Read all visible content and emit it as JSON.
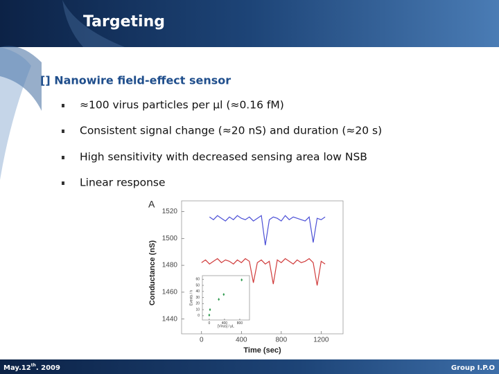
{
  "header": {
    "title": "Targeting"
  },
  "subtitle": "[] Nanowire field-effect sensor",
  "bullets": [
    "≈100 virus particles per μl (≈0.16 fM)",
    "Consistent signal change (≈20 nS) and duration (≈20 s)",
    "High sensitivity with decreased sensing area low NSB",
    "Linear response"
  ],
  "footer": {
    "date": {
      "main": "May.12",
      "sup": "th",
      "rest": ". 2009"
    },
    "group": "Group I.P.O"
  },
  "chart_data": [
    {
      "type": "line",
      "panel_label": "A",
      "xlabel": "Time (sec)",
      "ylabel": "Conductance (nS)",
      "x": [
        0,
        40,
        80,
        120,
        160,
        200,
        240,
        280,
        320,
        360,
        400,
        440,
        480,
        520,
        560,
        600,
        640,
        680,
        720,
        760,
        800,
        840,
        880,
        920,
        960,
        1000,
        1040,
        1080,
        1120,
        1160,
        1200,
        1240
      ],
      "series": [
        {
          "color": "#4b4fd6",
          "values": [
            null,
            null,
            1516,
            1514,
            1517,
            1515,
            1513,
            1516,
            1514,
            1517,
            1515,
            1514,
            1516,
            1513,
            1515,
            1517,
            1495,
            1514,
            1516,
            1515,
            1513,
            1517,
            1514,
            1516,
            1515,
            1514,
            1513,
            1516,
            1497,
            1515,
            1514,
            1516
          ]
        },
        {
          "color": "#d03a3a",
          "values": [
            1482,
            1484,
            1481,
            1483,
            1485,
            1482,
            1484,
            1483,
            1481,
            1484,
            1482,
            1485,
            1483,
            1467,
            1482,
            1484,
            1481,
            1483,
            1466,
            1484,
            1482,
            1485,
            1483,
            1481,
            1484,
            1482,
            1483,
            1485,
            1482,
            1465,
            1483,
            1481
          ]
        }
      ],
      "xlim": [
        -200,
        1420
      ],
      "ylim": [
        1429,
        1528
      ],
      "xticks": [
        0,
        400,
        800,
        1200
      ],
      "yticks": [
        1440,
        1460,
        1480,
        1500,
        1520
      ]
    },
    {
      "type": "scatter",
      "xlabel": "[Virus] / μL",
      "ylabel": "Events / h",
      "x": [
        0,
        20,
        250,
        380,
        850
      ],
      "values": [
        1,
        10,
        27,
        35,
        59
      ],
      "color": "#2e9a4e",
      "xlim": [
        -180,
        1055
      ],
      "ylim": [
        -7,
        66
      ],
      "xticks": [
        0,
        400,
        800
      ],
      "yticks": [
        0,
        10,
        20,
        30,
        40,
        50,
        60
      ]
    }
  ]
}
